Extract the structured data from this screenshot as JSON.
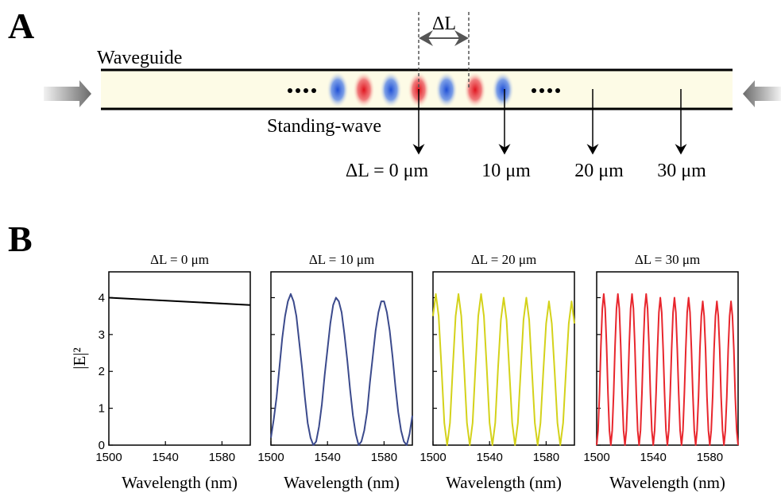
{
  "diagram": {
    "panel_a": "A",
    "panel_b": "B",
    "delta_label": "ΔL",
    "waveguide": "Waveguide",
    "standing_wave": "Standing-wave",
    "positions": [
      "ΔL = 0 μm",
      "10 μm",
      "20 μm",
      "30 μm"
    ]
  },
  "chart_data": [
    {
      "type": "line",
      "title": "ΔL = 0 μm",
      "xlabel": "Wavelength (nm)",
      "ylabel": "|E|²",
      "x": [
        1500,
        1600
      ],
      "series": [
        {
          "color": "#000000",
          "values": [
            4.0,
            3.8
          ]
        }
      ],
      "xlim": [
        1500,
        1600
      ],
      "xticks": [
        1500,
        1540,
        1580
      ],
      "ylim": [
        0,
        4.7
      ],
      "yticks": [
        0,
        1,
        2,
        3,
        4
      ],
      "ytick_labels": true
    },
    {
      "type": "line",
      "title": "ΔL = 10 μm",
      "xlabel": "Wavelength (nm)",
      "x": [
        1500,
        1502,
        1504,
        1506,
        1508,
        1510,
        1512,
        1514,
        1516,
        1518,
        1520,
        1522,
        1524,
        1526,
        1528,
        1530,
        1532,
        1534,
        1536,
        1538,
        1540,
        1542,
        1544,
        1546,
        1548,
        1550,
        1552,
        1554,
        1556,
        1558,
        1560,
        1562,
        1564,
        1566,
        1568,
        1570,
        1572,
        1574,
        1576,
        1578,
        1580,
        1582,
        1584,
        1586,
        1588,
        1590,
        1592,
        1594,
        1596,
        1598,
        1600
      ],
      "series": [
        {
          "color": "#3b4a8c",
          "values": [
            0.2,
            0.7,
            1.3,
            2.1,
            2.9,
            3.5,
            3.9,
            4.1,
            3.9,
            3.5,
            2.8,
            2.1,
            1.3,
            0.6,
            0.2,
            0,
            0.1,
            0.5,
            1.1,
            1.9,
            2.6,
            3.3,
            3.8,
            4.0,
            3.9,
            3.6,
            3.0,
            2.3,
            1.5,
            0.8,
            0.3,
            0,
            0.1,
            0.4,
            0.9,
            1.7,
            2.4,
            3.1,
            3.6,
            3.9,
            3.9,
            3.6,
            3.1,
            2.4,
            1.6,
            0.9,
            0.4,
            0.1,
            0,
            0.3,
            0.8
          ]
        }
      ],
      "xlim": [
        1500,
        1600
      ],
      "xticks": [
        1500,
        1540,
        1580
      ],
      "ylim": [
        0,
        4.7
      ],
      "yticks": [
        0,
        1,
        2,
        3,
        4
      ],
      "ytick_labels": false
    },
    {
      "type": "line",
      "title": "ΔL = 20 μm",
      "xlabel": "Wavelength (nm)",
      "x": [
        1500,
        1502,
        1504,
        1506,
        1508,
        1510,
        1512,
        1514,
        1516,
        1518,
        1520,
        1522,
        1524,
        1526,
        1528,
        1530,
        1532,
        1534,
        1536,
        1538,
        1540,
        1542,
        1544,
        1546,
        1548,
        1550,
        1552,
        1554,
        1556,
        1558,
        1560,
        1562,
        1564,
        1566,
        1568,
        1570,
        1572,
        1574,
        1576,
        1578,
        1580,
        1582,
        1584,
        1586,
        1588,
        1590,
        1592,
        1594,
        1596,
        1598,
        1600
      ],
      "series": [
        {
          "color": "#d4d21a",
          "values": [
            3.5,
            4.1,
            3.5,
            2.1,
            0.6,
            0,
            0.6,
            2.1,
            3.5,
            4.1,
            3.5,
            2.1,
            0.6,
            0,
            0.6,
            2.1,
            3.5,
            4.1,
            3.5,
            2.1,
            0.6,
            0,
            0.6,
            2.1,
            3.4,
            4.0,
            3.4,
            2.0,
            0.6,
            0,
            0.6,
            2.0,
            3.4,
            4.0,
            3.4,
            2.0,
            0.6,
            0,
            0.6,
            2.0,
            3.3,
            3.9,
            3.3,
            2.0,
            0.6,
            0,
            0.6,
            2.0,
            3.3,
            3.9,
            3.3
          ]
        }
      ],
      "xlim": [
        1500,
        1600
      ],
      "xticks": [
        1500,
        1540,
        1580
      ],
      "ylim": [
        0,
        4.7
      ],
      "yticks": [
        0,
        1,
        2,
        3,
        4
      ],
      "ytick_labels": false
    },
    {
      "type": "line",
      "title": "ΔL = 30 μm",
      "xlabel": "Wavelength (nm)",
      "x": [
        1500,
        1501,
        1502,
        1503,
        1504,
        1505,
        1506,
        1507,
        1508,
        1509,
        1510,
        1511,
        1512,
        1513,
        1514,
        1515,
        1516,
        1517,
        1518,
        1519,
        1520,
        1521,
        1522,
        1523,
        1524,
        1525,
        1526,
        1527,
        1528,
        1529,
        1530,
        1531,
        1532,
        1533,
        1534,
        1535,
        1536,
        1537,
        1538,
        1539,
        1540,
        1541,
        1542,
        1543,
        1544,
        1545,
        1546,
        1547,
        1548,
        1549,
        1550,
        1551,
        1552,
        1553,
        1554,
        1555,
        1556,
        1557,
        1558,
        1559,
        1560,
        1561,
        1562,
        1563,
        1564,
        1565,
        1566,
        1567,
        1568,
        1569,
        1570,
        1571,
        1572,
        1573,
        1574,
        1575,
        1576,
        1577,
        1578,
        1579,
        1580,
        1581,
        1582,
        1583,
        1584,
        1585,
        1586,
        1587,
        1588,
        1589,
        1590,
        1591,
        1592,
        1593,
        1594,
        1595,
        1596,
        1597,
        1598,
        1599,
        1600
      ],
      "series": [
        {
          "color": "#e8262d",
          "values": [
            0,
            0.4,
            1.4,
            2.7,
            3.7,
            4.1,
            3.7,
            2.7,
            1.4,
            0.4,
            0,
            0.4,
            1.4,
            2.7,
            3.7,
            4.1,
            3.7,
            2.7,
            1.4,
            0.4,
            0,
            0.4,
            1.4,
            2.7,
            3.7,
            4.1,
            3.7,
            2.7,
            1.4,
            0.4,
            0,
            0.4,
            1.4,
            2.7,
            3.7,
            4.1,
            3.7,
            2.7,
            1.4,
            0.4,
            0,
            0.4,
            1.4,
            2.6,
            3.6,
            4.0,
            3.6,
            2.6,
            1.4,
            0.4,
            0,
            0.4,
            1.4,
            2.6,
            3.6,
            4.0,
            3.6,
            2.6,
            1.4,
            0.4,
            0,
            0.4,
            1.4,
            2.6,
            3.6,
            4.0,
            3.6,
            2.6,
            1.4,
            0.4,
            0,
            0.4,
            1.3,
            2.6,
            3.5,
            3.9,
            3.5,
            2.6,
            1.3,
            0.4,
            0,
            0.4,
            1.3,
            2.6,
            3.5,
            3.9,
            3.5,
            2.6,
            1.3,
            0.4,
            0,
            0.4,
            1.3,
            2.6,
            3.5,
            3.9,
            3.5,
            2.6,
            1.3,
            0.4,
            0
          ]
        }
      ],
      "xlim": [
        1500,
        1600
      ],
      "xticks": [
        1500,
        1540,
        1580
      ],
      "ylim": [
        0,
        4.7
      ],
      "yticks": [
        0,
        1,
        2,
        3,
        4
      ],
      "ytick_labels": false
    }
  ]
}
